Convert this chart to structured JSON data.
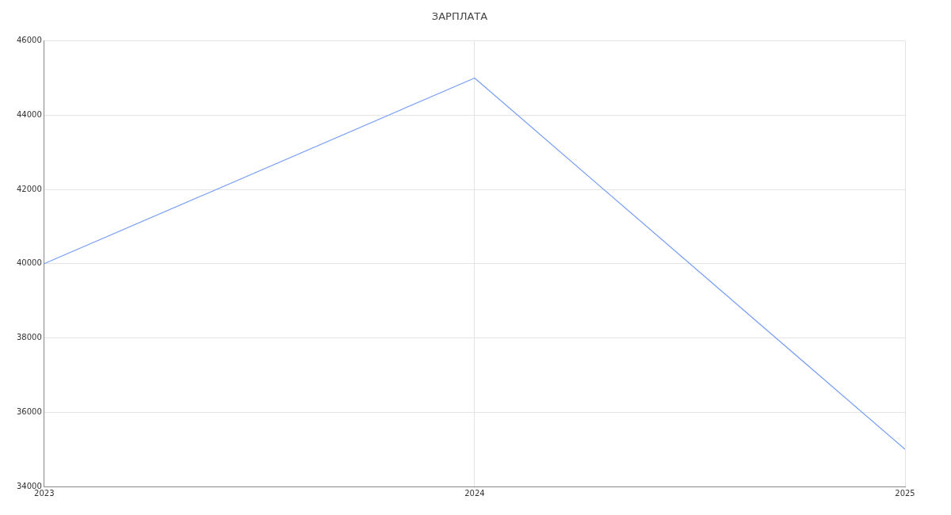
{
  "chart_data": {
    "type": "line",
    "title": "ЗАРПЛАТА",
    "x": [
      2023,
      2024,
      2025
    ],
    "series": [
      {
        "color": "#779ef5",
        "values": [
          40000,
          45000,
          35000
        ]
      }
    ],
    "xlim": [
      2023,
      2025
    ],
    "xticks": [
      2023,
      2024,
      2025
    ],
    "ylim": [
      34000,
      46000
    ],
    "yticks": [
      34000,
      36000,
      38000,
      40000,
      42000,
      44000,
      46000
    ],
    "grid": true,
    "legend": false,
    "marker": "none",
    "line_style": "solid"
  }
}
